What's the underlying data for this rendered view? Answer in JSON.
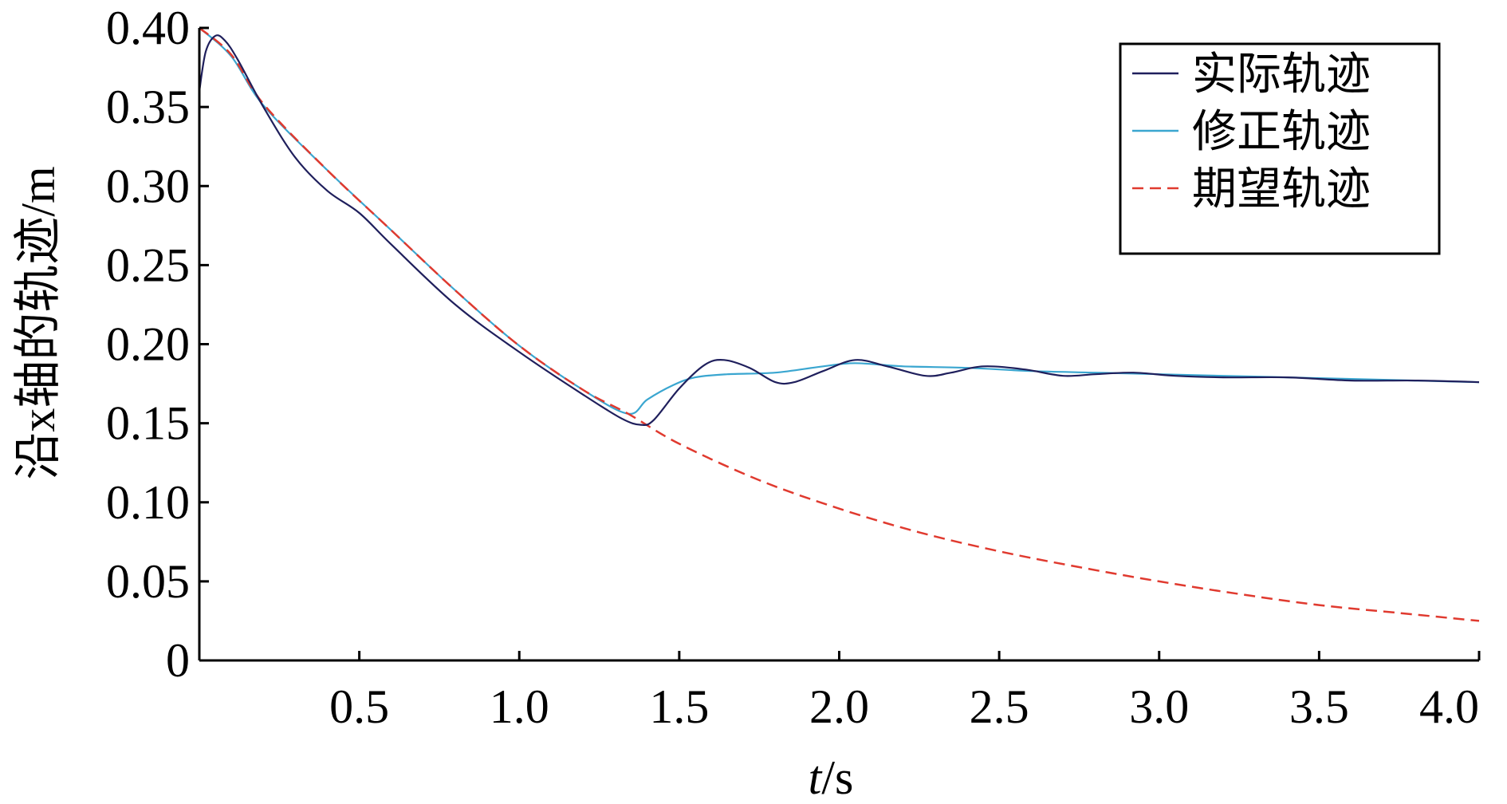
{
  "chart_data": {
    "type": "line",
    "xlabel": "t/s",
    "ylabel": "沿x轴的轨迹/m",
    "xlim": [
      0,
      4.0
    ],
    "ylim": [
      0,
      0.4
    ],
    "x_ticks": [
      0.5,
      1.0,
      1.5,
      2.0,
      2.5,
      3.0,
      3.5,
      4.0
    ],
    "x_tick_labels": [
      "0.5",
      "1.0",
      "1.5",
      "2.0",
      "2.5",
      "3.0",
      "3.5",
      "4.0"
    ],
    "y_ticks": [
      0,
      0.05,
      0.1,
      0.15,
      0.2,
      0.25,
      0.3,
      0.35,
      0.4
    ],
    "y_tick_labels": [
      "0",
      "0.05",
      "0.10",
      "0.15",
      "0.20",
      "0.25",
      "0.30",
      "0.35",
      "0.40"
    ],
    "grid": false,
    "legend_position": "top-right",
    "series": [
      {
        "name": "实际轨迹",
        "color": "#1f1f5c",
        "style": "solid",
        "points": [
          [
            0.0,
            0.36
          ],
          [
            0.02,
            0.385
          ],
          [
            0.05,
            0.395
          ],
          [
            0.08,
            0.392
          ],
          [
            0.12,
            0.38
          ],
          [
            0.2,
            0.35
          ],
          [
            0.3,
            0.318
          ],
          [
            0.4,
            0.297
          ],
          [
            0.5,
            0.283
          ],
          [
            0.6,
            0.263
          ],
          [
            0.8,
            0.225
          ],
          [
            1.0,
            0.195
          ],
          [
            1.2,
            0.168
          ],
          [
            1.32,
            0.153
          ],
          [
            1.38,
            0.149
          ],
          [
            1.42,
            0.152
          ],
          [
            1.5,
            0.172
          ],
          [
            1.58,
            0.187
          ],
          [
            1.64,
            0.19
          ],
          [
            1.72,
            0.185
          ],
          [
            1.8,
            0.176
          ],
          [
            1.86,
            0.176
          ],
          [
            1.95,
            0.183
          ],
          [
            2.05,
            0.19
          ],
          [
            2.15,
            0.186
          ],
          [
            2.27,
            0.18
          ],
          [
            2.35,
            0.182
          ],
          [
            2.45,
            0.186
          ],
          [
            2.58,
            0.184
          ],
          [
            2.7,
            0.18
          ],
          [
            2.8,
            0.181
          ],
          [
            2.92,
            0.182
          ],
          [
            3.05,
            0.18
          ],
          [
            3.2,
            0.179
          ],
          [
            3.4,
            0.179
          ],
          [
            3.6,
            0.177
          ],
          [
            3.8,
            0.177
          ],
          [
            4.0,
            0.176
          ]
        ]
      },
      {
        "name": "修正轨迹",
        "color": "#3aa6d0",
        "style": "solid",
        "points": [
          [
            0.0,
            0.4
          ],
          [
            0.1,
            0.382
          ],
          [
            0.2,
            0.351
          ],
          [
            0.4,
            0.31
          ],
          [
            0.6,
            0.272
          ],
          [
            0.8,
            0.234
          ],
          [
            1.0,
            0.199
          ],
          [
            1.2,
            0.171
          ],
          [
            1.34,
            0.156
          ],
          [
            1.4,
            0.165
          ],
          [
            1.48,
            0.174
          ],
          [
            1.55,
            0.179
          ],
          [
            1.65,
            0.181
          ],
          [
            1.8,
            0.182
          ],
          [
            1.95,
            0.186
          ],
          [
            2.05,
            0.188
          ],
          [
            2.2,
            0.186
          ],
          [
            2.4,
            0.185
          ],
          [
            2.6,
            0.183
          ],
          [
            2.8,
            0.182
          ],
          [
            3.0,
            0.181
          ],
          [
            3.2,
            0.18
          ],
          [
            3.4,
            0.179
          ],
          [
            3.6,
            0.178
          ],
          [
            3.8,
            0.177
          ],
          [
            4.0,
            0.176
          ]
        ]
      },
      {
        "name": "期望轨迹",
        "color": "#e03a2f",
        "style": "dashed",
        "points": [
          [
            0.0,
            0.4
          ],
          [
            0.1,
            0.383
          ],
          [
            0.2,
            0.352
          ],
          [
            0.4,
            0.31
          ],
          [
            0.6,
            0.272
          ],
          [
            0.8,
            0.234
          ],
          [
            1.0,
            0.199
          ],
          [
            1.2,
            0.171
          ],
          [
            1.34,
            0.156
          ],
          [
            1.5,
            0.137
          ],
          [
            1.75,
            0.114
          ],
          [
            2.0,
            0.096
          ],
          [
            2.25,
            0.081
          ],
          [
            2.5,
            0.069
          ],
          [
            2.75,
            0.059
          ],
          [
            3.0,
            0.05
          ],
          [
            3.25,
            0.042
          ],
          [
            3.5,
            0.035
          ],
          [
            3.75,
            0.03
          ],
          [
            4.0,
            0.025
          ]
        ]
      }
    ]
  }
}
